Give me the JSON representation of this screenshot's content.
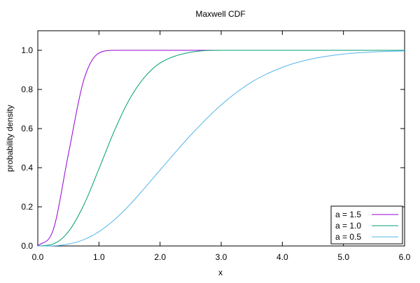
{
  "chart_data": {
    "type": "line",
    "title": "Maxwell CDF",
    "xlabel": "x",
    "ylabel": "probability density",
    "xlim": [
      0,
      6
    ],
    "ylim": [
      0,
      1.1
    ],
    "grid": false,
    "legend_position": "bottom-right",
    "x_ticks": [
      "0.0",
      "1.0",
      "2.0",
      "3.0",
      "4.0",
      "5.0",
      "6.0"
    ],
    "y_ticks": [
      "0.0",
      "0.2",
      "0.4",
      "0.6",
      "0.8",
      "1.0"
    ],
    "x": [
      0,
      0.25,
      0.5,
      0.75,
      1.0,
      1.25,
      1.5,
      1.75,
      2.0,
      2.5,
      3.0,
      3.5,
      4.0,
      4.5,
      5.0,
      5.5,
      6.0
    ],
    "series": [
      {
        "name": "a = 1.5",
        "color": "#9400d3",
        "values": [
          0,
          0.08,
          0.469,
          0.846,
          0.986,
          1.0,
          1.0,
          1.0,
          1.0,
          1.0,
          1.0,
          1.0,
          1.0,
          1.0,
          1.0,
          1.0,
          1.0
        ]
      },
      {
        "name": "a = 1.0",
        "color": "#009e73",
        "values": [
          0,
          0.01,
          0.073,
          0.208,
          0.394,
          0.587,
          0.75,
          0.864,
          0.935,
          0.99,
          1.0,
          1.0,
          1.0,
          1.0,
          1.0,
          1.0,
          1.0
        ]
      },
      {
        "name": "a = 0.5",
        "color": "#56b4e9",
        "values": [
          0,
          0.001,
          0.01,
          0.032,
          0.073,
          0.133,
          0.209,
          0.297,
          0.388,
          0.566,
          0.721,
          0.838,
          0.913,
          0.957,
          0.981,
          0.992,
          0.997
        ]
      }
    ]
  }
}
